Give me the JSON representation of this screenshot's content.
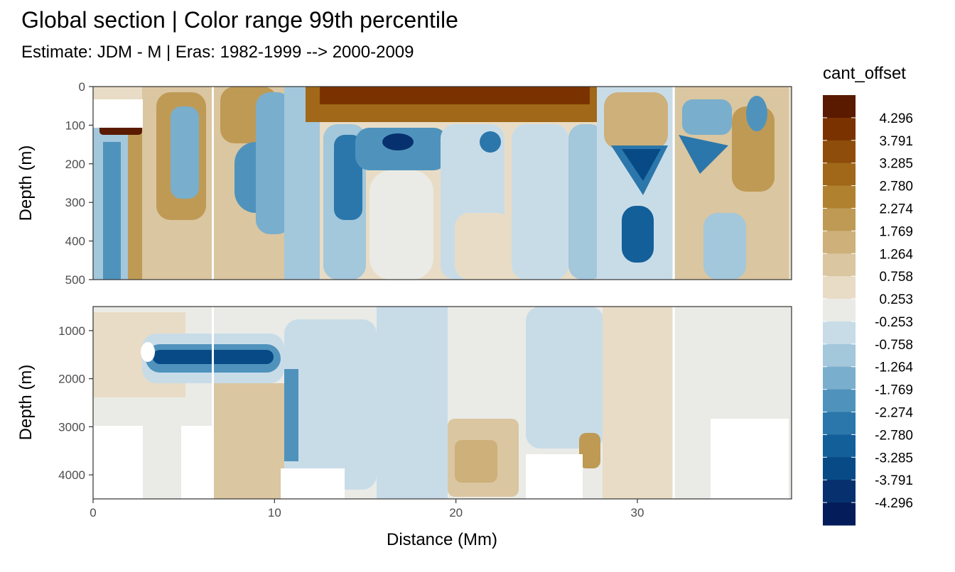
{
  "title": "Global section | Color range 99th percentile",
  "subtitle": "Estimate: JDM - M | Eras: 1982-1999 --> 2000-2009",
  "chart_data": [
    {
      "type": "heatmap",
      "panel": "top",
      "xlabel": "",
      "ylabel": "Depth (m)",
      "xlim": [
        0,
        38.5
      ],
      "ylim": [
        500,
        0
      ],
      "y_ticks": [
        "0",
        "100",
        "200",
        "300",
        "400",
        "500"
      ],
      "y_tick_values": [
        0,
        100,
        200,
        300,
        400,
        500
      ],
      "gap_lines_x": [
        6.6,
        32.0
      ]
    },
    {
      "type": "heatmap",
      "panel": "bottom",
      "xlabel": "Distance (Mm)",
      "ylabel": "Depth (m)",
      "xlim": [
        0,
        38.5
      ],
      "ylim": [
        4500,
        500
      ],
      "y_ticks": [
        "1000",
        "2000",
        "3000",
        "4000"
      ],
      "y_tick_values": [
        1000,
        2000,
        3000,
        4000
      ],
      "x_ticks": [
        "0",
        "10",
        "20",
        "30"
      ],
      "x_tick_values": [
        0,
        10,
        20,
        30
      ],
      "gap_lines_x": [
        6.6,
        32.0
      ]
    }
  ],
  "legend": {
    "title": "cant_offset",
    "labels": [
      "4.296",
      "3.791",
      "3.285",
      "2.780",
      "2.274",
      "1.769",
      "1.264",
      "0.758",
      "0.253",
      "-0.253",
      "-0.758",
      "-1.264",
      "-1.769",
      "-2.274",
      "-2.780",
      "-3.285",
      "-3.791",
      "-4.296"
    ],
    "colors": [
      "#5a1a00",
      "#7a3300",
      "#8e4d0a",
      "#a06818",
      "#b08230",
      "#bf9a55",
      "#cdb07a",
      "#dac6a0",
      "#e8dcc6",
      "#eaebe6",
      "#c8dce8",
      "#a3c7db",
      "#79aecd",
      "#4f93bd",
      "#2b77ab",
      "#135f99",
      "#074a86",
      "#06316e",
      "#041c5a"
    ]
  }
}
